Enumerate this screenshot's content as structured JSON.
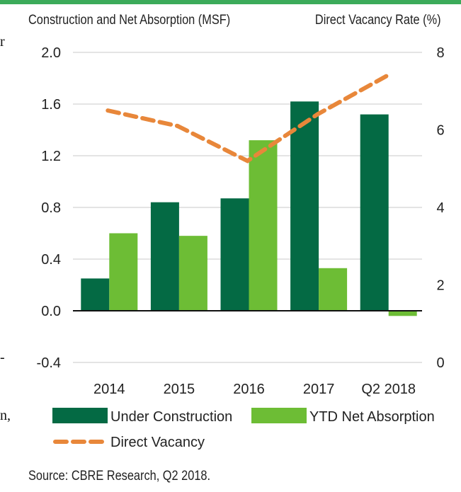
{
  "chart_data": {
    "type": "bar+line",
    "categories": [
      "2014",
      "2015",
      "2016",
      "2017",
      "Q2 2018"
    ],
    "series": [
      {
        "name": "Under Construction",
        "kind": "bar",
        "axis": "left",
        "color": "#046A44",
        "values": [
          0.25,
          0.84,
          0.87,
          1.62,
          1.52
        ]
      },
      {
        "name": "YTD Net Absorption",
        "kind": "bar",
        "axis": "left",
        "color": "#6DBD35",
        "values": [
          0.6,
          0.58,
          1.32,
          0.33,
          -0.04
        ]
      },
      {
        "name": "Direct Vacancy",
        "kind": "dashed-line",
        "axis": "right",
        "color": "#E8873A",
        "values": [
          6.5,
          6.1,
          5.2,
          6.4,
          7.4
        ]
      }
    ],
    "left_axis": {
      "title": "Construction and Net Absorption (MSF)",
      "range": [
        -0.4,
        2.0
      ],
      "ticks": [
        "2.0",
        "1.6",
        "1.2",
        "0.8",
        "0.4",
        "0.0",
        "-0.4"
      ]
    },
    "right_axis": {
      "title": "Direct Vacancy Rate (%)",
      "range": [
        0,
        8
      ],
      "ticks": [
        "8",
        "6",
        "4",
        "2",
        "0"
      ]
    },
    "grid": true,
    "legend_position": "bottom"
  },
  "source": "Source: CBRE Research, Q2 2018.",
  "edge_fragments": [
    "r",
    "-",
    "n,"
  ]
}
